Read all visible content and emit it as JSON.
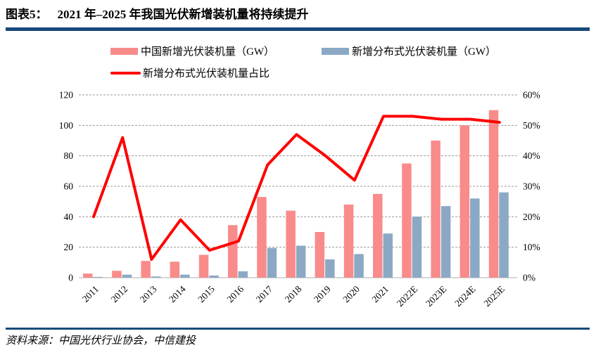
{
  "header": {
    "figure_label": "图表5：",
    "title": "2021 年–2025 年我国光伏新增装机量将持续提升"
  },
  "legend": {
    "items": [
      {
        "label": "中国新增光伏装机量（GW）",
        "swatch": "bar",
        "color": "#F98B8B"
      },
      {
        "label": "新增分布式光伏装机量（GW）",
        "swatch": "bar",
        "color": "#8BA9C4"
      },
      {
        "label": "新增分布式光伏装机量占比",
        "swatch": "line",
        "color": "#FF0000"
      }
    ]
  },
  "source": {
    "text": "资料来源：中国光伏行业协会，中信建投"
  },
  "colors": {
    "divider": "#17497B",
    "bar_total": "#F98B8B",
    "bar_distributed": "#8BA9C4",
    "ratio_line": "#FF0000",
    "gridline": "#999999",
    "baseline": "#C8C8C8",
    "axis_text": "#000000"
  },
  "chart_data": {
    "type": "bar",
    "subtype": "grouped bars with overlay line (dual axis)",
    "categories": [
      "2011",
      "2012",
      "2013",
      "2014",
      "2015",
      "2016",
      "2017",
      "2018",
      "2019",
      "2020",
      "2021",
      "2022E",
      "2023E",
      "2024E",
      "2025E"
    ],
    "series": [
      {
        "name": "中国新增光伏装机量（GW）",
        "kind": "bar",
        "axis": "left",
        "color": "#F98B8B",
        "values": [
          2.7,
          4.5,
          11,
          10.5,
          15,
          34.5,
          53,
          44,
          30,
          48,
          55,
          75,
          90,
          100,
          110
        ]
      },
      {
        "name": "新增分布式光伏装机量（GW）",
        "kind": "bar",
        "axis": "left",
        "color": "#8BA9C4",
        "values": [
          0.5,
          2,
          0.8,
          2,
          1.4,
          4.2,
          19.5,
          21,
          12,
          15.5,
          29,
          40,
          47,
          52,
          56
        ]
      },
      {
        "name": "新增分布式光伏装机量占比",
        "kind": "line",
        "axis": "right",
        "unit": "%",
        "color": "#FF0000",
        "values": [
          20,
          46,
          6,
          19,
          9,
          12,
          37,
          47,
          40,
          32,
          53,
          53,
          52,
          52,
          51
        ]
      }
    ],
    "left_axis": {
      "min": 0,
      "max": 120,
      "step": 20,
      "ticks": [
        "0",
        "20",
        "40",
        "60",
        "80",
        "100",
        "120"
      ]
    },
    "right_axis": {
      "min": 0,
      "max": 60,
      "step": 10,
      "ticks": [
        "0%",
        "10%",
        "20%",
        "30%",
        "40%",
        "50%",
        "60%"
      ]
    },
    "grid": "horizontal dashed",
    "legend_position": "top",
    "x_label_rotation": -45
  }
}
